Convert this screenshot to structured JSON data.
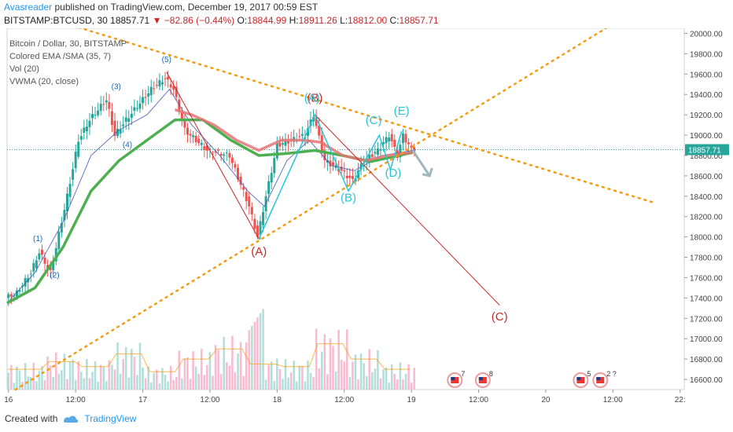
{
  "header": {
    "author": "Avasreader",
    "published_text": "published on TradingView.com, December 19, 2017 00:59 EST"
  },
  "ohlc": {
    "symbol": "BITSTAMP:BTCUSD, 30",
    "last": "18857.71",
    "change": "▼ −82.86 (−0.44%)",
    "o_label": "O:",
    "o": "18844.99",
    "h_label": "H:",
    "h": "18911.26",
    "l_label": "L:",
    "l": "18812.00",
    "c_label": "C:",
    "c": "18857.71"
  },
  "legend": {
    "title": "Bitcoin / Dollar, 30, BITSTAMP",
    "line1": "Colored EMA /SMA (35, 7)",
    "line2": "Vol (20)",
    "line3": "VWMA (20, close)"
  },
  "footer": {
    "created_with": "Created with",
    "brand": "TradingView"
  },
  "colors": {
    "up": "#26a69a",
    "down": "#ef5350",
    "ema": "#4caf50",
    "sma_red": "#e57373",
    "trend": "#f39c12",
    "wave_red": "#c62828",
    "wave_cyan": "#26c6da",
    "wave_blue": "#1565c0"
  },
  "chart_data": {
    "type": "candlestick",
    "y_axis_ticks": [
      "20000.00",
      "19800.00",
      "19600.00",
      "19400.00",
      "19200.00",
      "19000.00",
      "18800.00",
      "18600.00",
      "18400.00",
      "18200.00",
      "18000.00",
      "17800.00",
      "17600.00",
      "17400.00",
      "17200.00",
      "17000.00",
      "16800.00",
      "16600.00"
    ],
    "ylim": [
      16500,
      20050
    ],
    "current_price": "18857.71",
    "x_axis_ticks": [
      {
        "label": "16",
        "t": 0.5
      },
      {
        "label": "12:00",
        "t": 24.5
      },
      {
        "label": "17",
        "t": 48.5
      },
      {
        "label": "12:00",
        "t": 72.5
      },
      {
        "label": "18",
        "t": 96.5
      },
      {
        "label": "12:00",
        "t": 120.5
      },
      {
        "label": "19",
        "t": 144.5
      },
      {
        "label": "12:00",
        "t": 168.5
      },
      {
        "label": "20",
        "t": 192.5
      },
      {
        "label": "12:00",
        "t": 216.5
      },
      {
        "label": "22:",
        "t": 240.5
      }
    ],
    "anchors": [
      {
        "t": 0,
        "p": 17400
      },
      {
        "t": 4,
        "p": 17450
      },
      {
        "t": 9,
        "p": 17650
      },
      {
        "t": 12,
        "p": 17850
      },
      {
        "t": 16,
        "p": 17650
      },
      {
        "t": 22,
        "p": 18400
      },
      {
        "t": 26,
        "p": 18950
      },
      {
        "t": 30,
        "p": 19150
      },
      {
        "t": 36,
        "p": 19350
      },
      {
        "t": 39,
        "p": 19000
      },
      {
        "t": 43,
        "p": 19150
      },
      {
        "t": 52,
        "p": 19450
      },
      {
        "t": 57,
        "p": 19560
      },
      {
        "t": 60,
        "p": 19450
      },
      {
        "t": 64,
        "p": 19050
      },
      {
        "t": 72,
        "p": 18850
      },
      {
        "t": 80,
        "p": 18800
      },
      {
        "t": 87,
        "p": 18300
      },
      {
        "t": 90,
        "p": 18000
      },
      {
        "t": 93,
        "p": 18400
      },
      {
        "t": 97,
        "p": 18900
      },
      {
        "t": 102,
        "p": 18950
      },
      {
        "t": 107,
        "p": 19000
      },
      {
        "t": 110,
        "p": 19200
      },
      {
        "t": 114,
        "p": 18750
      },
      {
        "t": 120,
        "p": 18650
      },
      {
        "t": 124,
        "p": 18550
      },
      {
        "t": 128,
        "p": 18750
      },
      {
        "t": 133,
        "p": 18850
      },
      {
        "t": 137,
        "p": 19000
      },
      {
        "t": 140,
        "p": 18800
      },
      {
        "t": 142,
        "p": 19000
      },
      {
        "t": 145,
        "p": 18857
      }
    ],
    "ema_green": [
      {
        "t": 0,
        "p": 17350
      },
      {
        "t": 10,
        "p": 17500
      },
      {
        "t": 20,
        "p": 17900
      },
      {
        "t": 30,
        "p": 18450
      },
      {
        "t": 40,
        "p": 18750
      },
      {
        "t": 50,
        "p": 18950
      },
      {
        "t": 60,
        "p": 19150
      },
      {
        "t": 70,
        "p": 19150
      },
      {
        "t": 80,
        "p": 18950
      },
      {
        "t": 90,
        "p": 18800
      },
      {
        "t": 100,
        "p": 18820
      },
      {
        "t": 110,
        "p": 18850
      },
      {
        "t": 120,
        "p": 18800
      },
      {
        "t": 130,
        "p": 18740
      },
      {
        "t": 140,
        "p": 18800
      },
      {
        "t": 145,
        "p": 18830
      }
    ],
    "sma_red": [
      {
        "t": 60,
        "p": 19250
      },
      {
        "t": 66,
        "p": 19200
      },
      {
        "t": 74,
        "p": 19100
      },
      {
        "t": 82,
        "p": 18950
      },
      {
        "t": 90,
        "p": 18850
      },
      {
        "t": 98,
        "p": 18950
      },
      {
        "t": 106,
        "p": 18950
      },
      {
        "t": 112,
        "p": 18930
      },
      {
        "t": 120,
        "p": 18800
      },
      {
        "t": 128,
        "p": 18750
      },
      {
        "t": 136,
        "p": 18800
      },
      {
        "t": 145,
        "p": 18830
      }
    ],
    "vwma_blue": [
      {
        "t": 0,
        "p": 17350
      },
      {
        "t": 10,
        "p": 17650
      },
      {
        "t": 20,
        "p": 18150
      },
      {
        "t": 30,
        "p": 18800
      },
      {
        "t": 40,
        "p": 19050
      },
      {
        "t": 50,
        "p": 19200
      },
      {
        "t": 58,
        "p": 19450
      },
      {
        "t": 66,
        "p": 19100
      },
      {
        "t": 76,
        "p": 18800
      },
      {
        "t": 86,
        "p": 18450
      },
      {
        "t": 92,
        "p": 18300
      },
      {
        "t": 100,
        "p": 18750
      },
      {
        "t": 108,
        "p": 18950
      },
      {
        "t": 116,
        "p": 18700
      },
      {
        "t": 124,
        "p": 18650
      },
      {
        "t": 134,
        "p": 18800
      },
      {
        "t": 145,
        "p": 18850
      }
    ],
    "vol_wave": [
      40,
      55,
      45,
      70,
      35,
      60,
      80,
      50,
      45,
      90,
      60,
      40
    ],
    "volume_max_px": 108,
    "trendlines": [
      {
        "name": "upper-resistance",
        "p1": {
          "t": 17,
          "p": 20130
        },
        "p2": {
          "t": 232,
          "p": 18330
        }
      },
      {
        "name": "lower-support",
        "p1": {
          "t": 3,
          "p": 16500
        },
        "p2": {
          "t": 214,
          "p": 20050
        }
      }
    ],
    "wave_red": {
      "points": [
        {
          "t": 57,
          "p": 19620
        },
        {
          "t": 90,
          "p": 17980
        },
        {
          "t": 110,
          "p": 19200
        },
        {
          "t": 176,
          "p": 17330
        }
      ],
      "labels": [
        {
          "text": "(A)",
          "t": 90,
          "p": 17820
        },
        {
          "text": "(B)",
          "t": 110,
          "p": 19330
        },
        {
          "text": "(C)",
          "t": 176,
          "p": 17180
        }
      ]
    },
    "wave_cyan": {
      "points": [
        {
          "t": 90,
          "p": 17980
        },
        {
          "t": 110,
          "p": 19200
        },
        {
          "t": 122,
          "p": 18450
        },
        {
          "t": 133,
          "p": 19000
        },
        {
          "t": 137,
          "p": 18660
        },
        {
          "t": 141,
          "p": 19040
        }
      ],
      "labels": [
        {
          "text": "(A)",
          "t": 109,
          "p": 19330
        },
        {
          "text": "(B)",
          "t": 122,
          "p": 18350
        },
        {
          "text": "(C)",
          "t": 131,
          "p": 19110
        },
        {
          "text": "(D)",
          "t": 138,
          "p": 18590
        },
        {
          "text": "(E)",
          "t": 141,
          "p": 19200
        }
      ]
    },
    "wave_blue_labels": [
      {
        "text": "(1)",
        "t": 11,
        "p": 17960
      },
      {
        "text": "(2)",
        "t": 17,
        "p": 17600
      },
      {
        "text": "(3)",
        "t": 39,
        "p": 19450
      },
      {
        "text": "(4)",
        "t": 43,
        "p": 18880
      },
      {
        "text": "(5)",
        "t": 57,
        "p": 19720
      }
    ],
    "arrow": {
      "from": {
        "t": 145,
        "p": 18850
      },
      "to": {
        "t": 151,
        "p": 18600
      }
    },
    "events": [
      {
        "t": 160,
        "count": "7"
      },
      {
        "t": 170,
        "count": "8"
      },
      {
        "t": 205,
        "count": "5"
      },
      {
        "t": 212,
        "count": "2 ?"
      }
    ]
  }
}
